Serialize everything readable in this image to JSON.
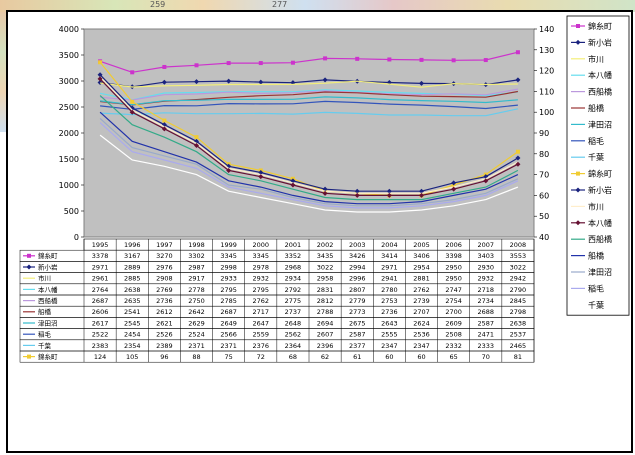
{
  "background_fragment": {
    "labels": [
      "259",
      "277"
    ]
  },
  "chart_data": {
    "type": "line",
    "categories": [
      "1995",
      "1996",
      "1997",
      "1998",
      "1999",
      "2000",
      "2001",
      "2002",
      "2003",
      "2004",
      "2005",
      "2006",
      "2007",
      "2008"
    ],
    "y_left_lim": [
      0,
      4000
    ],
    "y_left_ticks": [
      "0",
      "500",
      "1000",
      "1500",
      "2000",
      "2500",
      "3000",
      "3500",
      "4000"
    ],
    "y_right_lim": [
      40,
      140
    ],
    "y_right_ticks": [
      "40",
      "50",
      "60",
      "70",
      "80",
      "90",
      "100",
      "110",
      "120",
      "130",
      "140"
    ],
    "grid": false,
    "legend_position": "right",
    "series": [
      {
        "name": "錦糸町",
        "color": "#cc33cc",
        "marker": "square",
        "axis": "left",
        "values": [
          3378,
          3167,
          3270,
          3302,
          3345,
          3345,
          3352,
          3435,
          3426,
          3414,
          3406,
          3398,
          3403,
          3553
        ],
        "labels": [
          "3378",
          "3167",
          "3270",
          "3302",
          "3345",
          "3345",
          "3352",
          "3435",
          "3426",
          "3414",
          "3406",
          "3398",
          "3403",
          "3553"
        ]
      },
      {
        "name": "新小岩",
        "color": "#1a237e",
        "marker": "diamond",
        "axis": "left",
        "values": [
          2971,
          2889,
          2976,
          2987,
          2998,
          2978,
          2968,
          3022,
          2994,
          2971,
          2954,
          2950,
          2930,
          3022
        ],
        "labels": [
          "2971",
          "2889",
          "2976",
          "2987",
          "2998",
          "2978",
          "2968",
          "3022",
          "2994",
          "2971",
          "2954",
          "2950",
          "2930",
          "3022"
        ]
      },
      {
        "name": "市川",
        "color": "#f3ee7a",
        "marker": "none",
        "axis": "left",
        "values": [
          2961,
          2885,
          2908,
          2917,
          2933,
          2932,
          2934,
          2958,
          2996,
          2941,
          2881,
          2950,
          2932,
          2942
        ],
        "labels": [
          "2961",
          "2885",
          "2908",
          "2917",
          "2933",
          "2932",
          "2934",
          "2958",
          "2996",
          "2941",
          "2881",
          "2950",
          "2932",
          "2942"
        ]
      },
      {
        "name": "本八幡",
        "color": "#66ddee",
        "marker": "none",
        "axis": "left",
        "values": [
          2764,
          2638,
          2769,
          2778,
          2795,
          2795,
          2792,
          2831,
          2807,
          2780,
          2762,
          2747,
          2718,
          2790
        ],
        "labels": [
          "2764",
          "2638",
          "2769",
          "2778",
          "2795",
          "2795",
          "2792",
          "2831",
          "2807",
          "2780",
          "2762",
          "2747",
          "2718",
          "2790"
        ]
      },
      {
        "name": "西船橋",
        "color": "#bb99dd",
        "marker": "none",
        "axis": "left",
        "values": [
          2687,
          2635,
          2736,
          2750,
          2785,
          2762,
          2775,
          2812,
          2779,
          2753,
          2739,
          2754,
          2734,
          2845
        ],
        "labels": [
          "2687",
          "2635",
          "2736",
          "2750",
          "2785",
          "2762",
          "2775",
          "2812",
          "2779",
          "2753",
          "2739",
          "2754",
          "2734",
          "2845"
        ]
      },
      {
        "name": "船橋",
        "color": "#993333",
        "marker": "none",
        "axis": "left",
        "values": [
          2606,
          2541,
          2612,
          2642,
          2687,
          2717,
          2737,
          2788,
          2773,
          2736,
          2707,
          2700,
          2688,
          2798
        ],
        "labels": [
          "2606",
          "2541",
          "2612",
          "2642",
          "2687",
          "2717",
          "2737",
          "2788",
          "2773",
          "2736",
          "2707",
          "2700",
          "2688",
          "2798"
        ]
      },
      {
        "name": "津田沼",
        "color": "#33bbcc",
        "marker": "none",
        "axis": "left",
        "values": [
          2617,
          2545,
          2621,
          2629,
          2649,
          2647,
          2648,
          2694,
          2675,
          2643,
          2624,
          2609,
          2587,
          2638
        ],
        "labels": [
          "2617",
          "2545",
          "2621",
          "2629",
          "2649",
          "2647",
          "2648",
          "2694",
          "2675",
          "2643",
          "2624",
          "2609",
          "2587",
          "2638"
        ]
      },
      {
        "name": "稲毛",
        "color": "#3355bb",
        "marker": "none",
        "axis": "left",
        "values": [
          2522,
          2454,
          2526,
          2524,
          2566,
          2559,
          2562,
          2607,
          2587,
          2555,
          2536,
          2508,
          2471,
          2537
        ],
        "labels": [
          "2522",
          "2454",
          "2526",
          "2524",
          "2566",
          "2559",
          "2562",
          "2607",
          "2587",
          "2555",
          "2536",
          "2508",
          "2471",
          "2537"
        ]
      },
      {
        "name": "千葉",
        "color": "#66ccee",
        "marker": "none",
        "axis": "left",
        "values": [
          2383,
          2354,
          2389,
          2371,
          2371,
          2376,
          2364,
          2396,
          2377,
          2347,
          2347,
          2332,
          2333,
          2465
        ],
        "labels": [
          "2383",
          "2354",
          "2389",
          "2371",
          "2371",
          "2376",
          "2364",
          "2396",
          "2377",
          "2347",
          "2347",
          "2332",
          "2333",
          "2465"
        ]
      },
      {
        "name": "錦糸町",
        "color": "#f0cc33",
        "marker": "square",
        "axis": "right",
        "values": [
          124,
          105,
          96,
          88,
          75,
          72,
          68,
          62,
          61,
          60,
          60,
          65,
          70,
          81
        ],
        "labels": [
          "124",
          "105",
          "96",
          "88",
          "75",
          "72",
          "68",
          "62",
          "61",
          "60",
          "60",
          "65",
          "70",
          "81"
        ]
      },
      {
        "name": "新小岩",
        "color": "#1a237e",
        "marker": "diamond",
        "axis": "right",
        "values": [
          118,
          102,
          94,
          86,
          74,
          71,
          67,
          63,
          62,
          62,
          62,
          66,
          69,
          78
        ],
        "labels": []
      },
      {
        "name": "市川",
        "color": "#ffeecc",
        "marker": "none",
        "axis": "right",
        "values": [
          117,
          101,
          93,
          85,
          73,
          70,
          66,
          62,
          61,
          61,
          61,
          64,
          68,
          76
        ],
        "labels": []
      },
      {
        "name": "本八幡",
        "color": "#661133",
        "marker": "diamond",
        "axis": "right",
        "values": [
          116,
          100,
          92,
          84,
          72,
          69,
          65,
          61,
          60,
          60,
          60,
          63,
          67,
          75
        ],
        "labels": []
      },
      {
        "name": "西船橋",
        "color": "#33aa88",
        "marker": "none",
        "axis": "right",
        "values": [
          108,
          94,
          88,
          81,
          70,
          67,
          63,
          59,
          58,
          58,
          58,
          61,
          64,
          72
        ],
        "labels": []
      },
      {
        "name": "船橋",
        "color": "#2233aa",
        "marker": "none",
        "axis": "right",
        "values": [
          100,
          86,
          81,
          76,
          67,
          64,
          60,
          57,
          56,
          56,
          57,
          60,
          63,
          70
        ],
        "labels": []
      },
      {
        "name": "津田沼",
        "color": "#99aacc",
        "marker": "none",
        "axis": "right",
        "values": [
          97,
          83,
          79,
          75,
          65,
          63,
          59,
          56,
          55,
          55,
          56,
          58,
          61,
          68
        ],
        "labels": []
      },
      {
        "name": "稲毛",
        "color": "#aaaaee",
        "marker": "none",
        "axis": "right",
        "values": [
          95,
          81,
          77,
          73,
          64,
          61,
          58,
          55,
          54,
          54,
          55,
          57,
          60,
          67
        ],
        "labels": []
      },
      {
        "name": "千葉",
        "color": "#ffffff",
        "marker": "none",
        "axis": "right",
        "values": [
          89,
          77,
          74,
          70,
          62,
          59,
          56,
          53,
          52,
          52,
          53,
          55,
          58,
          64
        ],
        "labels": []
      }
    ],
    "table_row_series": [
      0,
      1,
      2,
      3,
      4,
      5,
      6,
      7,
      8,
      9
    ]
  }
}
